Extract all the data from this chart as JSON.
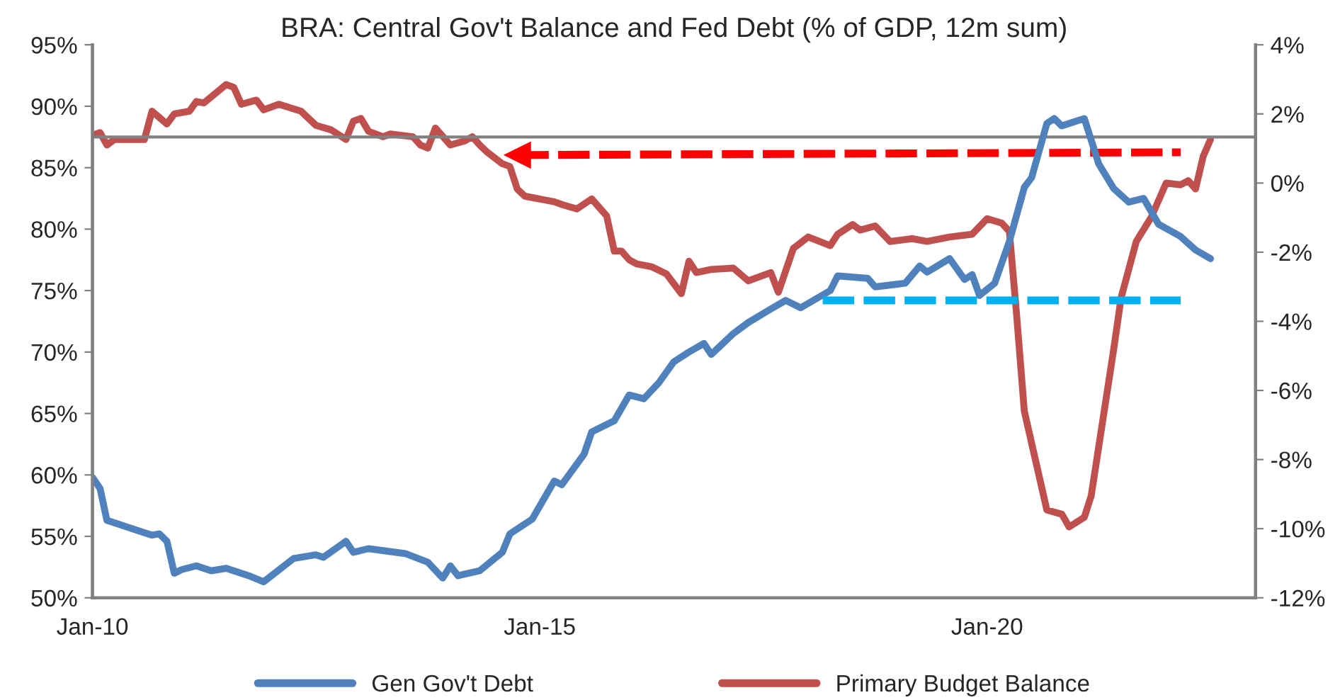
{
  "chart_data": {
    "type": "line",
    "title": "BRA: Central Gov't Balance and Fed Debt (% of GDP, 12m sum)",
    "xlim": [
      "2010-01",
      "2023-01"
    ],
    "xticks": [
      {
        "value": "2010-01",
        "label": "Jan-10"
      },
      {
        "value": "2015-01",
        "label": "Jan-15"
      },
      {
        "value": "2020-01",
        "label": "Jan-20"
      }
    ],
    "ylim": [
      50,
      95
    ],
    "yticks": [
      {
        "value": 50,
        "label": "50%"
      },
      {
        "value": 55,
        "label": "55%"
      },
      {
        "value": 60,
        "label": "60%"
      },
      {
        "value": 65,
        "label": "65%"
      },
      {
        "value": 70,
        "label": "70%"
      },
      {
        "value": 75,
        "label": "75%"
      },
      {
        "value": 80,
        "label": "80%"
      },
      {
        "value": 85,
        "label": "85%"
      },
      {
        "value": 90,
        "label": "90%"
      },
      {
        "value": 95,
        "label": "95%"
      }
    ],
    "y2lim": [
      -12,
      4
    ],
    "y2ticks": [
      {
        "value": -12,
        "label": "-12%"
      },
      {
        "value": -10,
        "label": "-10%"
      },
      {
        "value": -8,
        "label": "-8%"
      },
      {
        "value": -6,
        "label": "-6%"
      },
      {
        "value": -4,
        "label": "-4%"
      },
      {
        "value": -2,
        "label": "-2%"
      },
      {
        "value": 0,
        "label": "0%"
      },
      {
        "value": 2,
        "label": "2%"
      },
      {
        "value": 4,
        "label": "4%"
      }
    ],
    "grid": false,
    "legend": "bottom",
    "ref_lines": [
      {
        "axis": "y",
        "value": 87.5,
        "color": "#808080"
      }
    ],
    "series": [
      {
        "name": "Gen Gov't Debt",
        "color": "#4f81bd",
        "x": [
          "2010-01",
          "2010-02",
          "2010-03",
          "2010-07",
          "2010-09",
          "2010-10",
          "2010-11",
          "2010-12",
          "2011-01",
          "2011-03",
          "2011-05",
          "2011-07",
          "2011-10",
          "2011-12",
          "2012-04",
          "2012-07",
          "2012-08",
          "2012-11",
          "2012-12",
          "2013-02",
          "2013-07",
          "2013-10",
          "2013-12",
          "2014-01",
          "2014-02",
          "2014-05",
          "2014-08",
          "2014-09",
          "2014-12",
          "2015-03",
          "2015-04",
          "2015-07",
          "2015-08",
          "2015-11",
          "2016-01",
          "2016-03",
          "2016-05",
          "2016-07",
          "2016-09",
          "2016-11",
          "2016-12",
          "2017-03",
          "2017-05",
          "2017-08",
          "2017-10",
          "2017-12",
          "2018-04",
          "2018-05",
          "2018-09",
          "2018-10",
          "2019-02",
          "2019-04",
          "2019-05",
          "2019-08",
          "2019-10",
          "2019-11",
          "2019-12",
          "2020-02",
          "2020-04",
          "2020-06",
          "2020-07",
          "2020-09",
          "2020-10",
          "2020-11",
          "2021-02",
          "2021-04",
          "2021-06",
          "2021-08",
          "2021-10",
          "2021-12",
          "2022-03",
          "2022-05",
          "2022-07"
        ],
        "values": [
          59.8,
          58.9,
          56.3,
          55.5,
          55.1,
          55.2,
          54.6,
          52.0,
          52.3,
          52.6,
          52.2,
          52.4,
          51.8,
          51.3,
          53.2,
          53.5,
          53.3,
          54.6,
          53.7,
          54.0,
          53.6,
          52.9,
          51.6,
          52.6,
          51.8,
          52.2,
          53.7,
          55.2,
          56.4,
          59.5,
          59.2,
          61.7,
          63.5,
          64.4,
          66.5,
          66.2,
          67.5,
          69.2,
          70.0,
          70.7,
          69.8,
          71.5,
          72.4,
          73.5,
          74.2,
          73.6,
          75.0,
          76.2,
          76.0,
          75.3,
          75.6,
          77.0,
          76.5,
          77.6,
          75.9,
          76.3,
          74.6,
          75.6,
          79.0,
          83.4,
          84.2,
          88.6,
          89.0,
          88.4,
          89.0,
          85.3,
          83.3,
          82.2,
          82.5,
          80.4,
          79.4,
          78.3,
          77.6
        ]
      },
      {
        "name": "Primary Budget Balance",
        "color": "#c0504d",
        "axis": "y2",
        "x": [
          "2010-01",
          "2010-02",
          "2010-03",
          "2010-04",
          "2010-08",
          "2010-09",
          "2010-11",
          "2010-12",
          "2011-02",
          "2011-03",
          "2011-04",
          "2011-07",
          "2011-08",
          "2011-09",
          "2011-11",
          "2011-12",
          "2012-02",
          "2012-05",
          "2012-07",
          "2012-09",
          "2012-11",
          "2012-12",
          "2013-01",
          "2013-02",
          "2013-04",
          "2013-05",
          "2013-08",
          "2013-09",
          "2013-10",
          "2013-11",
          "2014-01",
          "2014-03",
          "2014-04",
          "2014-05",
          "2014-06",
          "2014-08",
          "2014-09",
          "2014-10",
          "2014-11",
          "2015-03",
          "2015-04",
          "2015-06",
          "2015-08",
          "2015-10",
          "2015-11",
          "2015-12",
          "2016-01",
          "2016-02",
          "2016-04",
          "2016-06",
          "2016-08",
          "2016-09",
          "2016-10",
          "2016-12",
          "2017-03",
          "2017-05",
          "2017-08",
          "2017-09",
          "2017-11",
          "2018-01",
          "2018-04",
          "2018-05",
          "2018-07",
          "2018-08",
          "2018-10",
          "2018-12",
          "2019-03",
          "2019-05",
          "2019-08",
          "2019-11",
          "2020-01",
          "2020-03",
          "2020-04",
          "2020-05",
          "2020-06",
          "2020-09",
          "2020-11",
          "2020-12",
          "2021-02",
          "2021-03",
          "2021-06",
          "2021-07",
          "2021-09",
          "2021-11",
          "2022-01",
          "2022-03",
          "2022-04",
          "2022-05",
          "2022-06",
          "2022-07"
        ],
        "values": [
          1.38,
          1.46,
          1.1,
          1.26,
          1.26,
          2.08,
          1.71,
          2.0,
          2.08,
          2.36,
          2.32,
          2.85,
          2.77,
          2.28,
          2.4,
          2.12,
          2.28,
          2.08,
          1.67,
          1.54,
          1.26,
          1.79,
          1.87,
          1.5,
          1.34,
          1.42,
          1.34,
          1.1,
          1.01,
          1.59,
          1.1,
          1.22,
          1.34,
          1.1,
          0.89,
          0.56,
          0.48,
          -0.17,
          -0.38,
          -0.54,
          -0.62,
          -0.75,
          -0.46,
          -0.95,
          -1.97,
          -1.97,
          -2.22,
          -2.34,
          -2.42,
          -2.63,
          -3.2,
          -2.26,
          -2.59,
          -2.5,
          -2.46,
          -2.83,
          -2.59,
          -3.16,
          -1.89,
          -1.56,
          -1.81,
          -1.48,
          -1.2,
          -1.36,
          -1.24,
          -1.69,
          -1.61,
          -1.69,
          -1.56,
          -1.48,
          -1.03,
          -1.16,
          -1.4,
          -3.86,
          -6.6,
          -9.46,
          -9.58,
          -9.95,
          -9.67,
          -9.05,
          -4.8,
          -3.32,
          -1.69,
          -0.99,
          0.0,
          -0.05,
          0.07,
          -0.17,
          0.77,
          1.26
        ]
      },
      {
        "color": "#ff0000",
        "axis": "y2",
        "line_style": "dashed",
        "marker": "triangle",
        "x": [
          "2014-10",
          "2022-03"
        ],
        "values": [
          0.81,
          0.89
        ]
      },
      {
        "color": "#00b0f0",
        "line_style": "dashed",
        "x": [
          "2018-03",
          "2022-03"
        ],
        "values": [
          74.2,
          74.2
        ]
      }
    ]
  }
}
